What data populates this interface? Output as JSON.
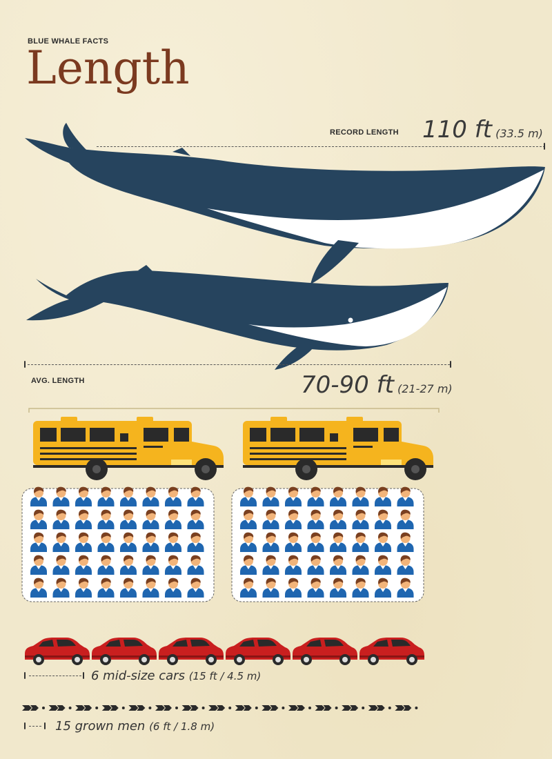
{
  "header": {
    "kicker": "BLUE WHALE FACTS",
    "title": "Length"
  },
  "record": {
    "label": "RECORD LENGTH",
    "value": "110 ft",
    "metric": "(33.5 m)"
  },
  "average": {
    "label": "AVG. LENGTH",
    "value": "70-90 ft",
    "metric": "(21-27 m)"
  },
  "comparisons": {
    "buses": {
      "count": 2
    },
    "people_groups": {
      "count": 2,
      "rows": 5,
      "cols": 8
    },
    "cars": {
      "count": 6,
      "text": "6 mid-size cars",
      "metric": "(15 ft / 4.5 m)"
    },
    "men": {
      "count": 15,
      "text": "15 grown men",
      "metric": "(6 ft / 1.8 m)"
    }
  },
  "colors": {
    "whale": "#26445e",
    "title": "#7b3a20",
    "bus": "#f5b41e",
    "car": "#c91f1f",
    "shirt": "#1f66b0",
    "hair": "#7a4020",
    "skin": "#f2b47a",
    "background": "#f1e8cc"
  },
  "icons": [
    "whale-icon",
    "school-bus-icon",
    "person-icon",
    "car-icon",
    "footprint-icon"
  ]
}
